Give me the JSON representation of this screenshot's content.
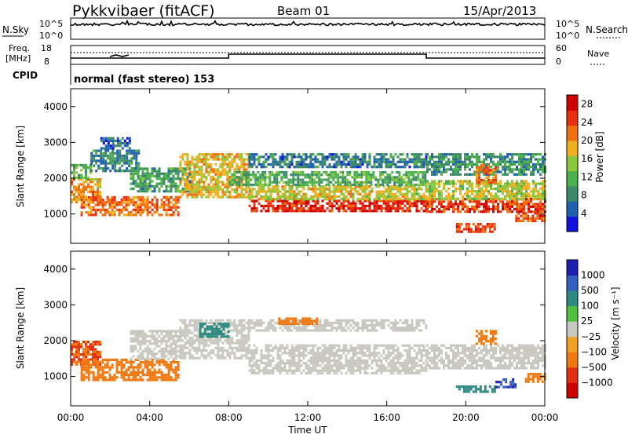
{
  "header": {
    "site": "Pykkvibaer (fitACF)",
    "beam": "Beam 01",
    "date": "15/Apr/2013"
  },
  "noise_panel": {
    "left_label": "N.Sky",
    "left_ticks": [
      "10^5",
      "10^0"
    ],
    "right_label": "N.Search",
    "right_ticks": [
      "10^5",
      "10^0"
    ]
  },
  "freq_panel": {
    "left_label_1": "Freq.",
    "left_label_2": "[MHz]",
    "left_ticks": [
      "18",
      "8"
    ],
    "right_label": "Nave",
    "right_ticks": [
      "60",
      "0"
    ]
  },
  "cpid_panel": {
    "label": "CPID",
    "text": "normal (fast stereo) 153"
  },
  "x_axis": {
    "title": "Time UT",
    "ticks": [
      "00:00",
      "04:00",
      "08:00",
      "12:00",
      "16:00",
      "20:00",
      "00:00"
    ]
  },
  "chart_data": [
    {
      "type": "heatmap",
      "title": "Power",
      "ylabel": "Slant Range [km]",
      "xlabel": "Time UT",
      "xlim": [
        0,
        24
      ],
      "ylim": [
        180,
        4500
      ],
      "y_ticks": [
        "1000",
        "2000",
        "3000",
        "4000"
      ],
      "y_tick_values": [
        1000,
        2000,
        3000,
        4000
      ],
      "colorbar": {
        "label": "Power [dB]",
        "ticks": [
          "4",
          "8",
          "12",
          "16",
          "20",
          "24",
          "28"
        ],
        "tick_values": [
          4,
          8,
          12,
          16,
          20,
          24,
          28
        ],
        "range": [
          0,
          30
        ],
        "colors": [
          "#1010e0",
          "#2060b0",
          "#3c8a6a",
          "#4cb04c",
          "#8cc83c",
          "#f0b020",
          "#f07010",
          "#e83010",
          "#d00000"
        ]
      },
      "bands": [
        {
          "t0": 0.0,
          "t1": 1.5,
          "r0": 1300,
          "r1": 2000,
          "level": 20
        },
        {
          "t0": 0.0,
          "t1": 1.0,
          "r0": 2000,
          "r1": 2400,
          "level": 12
        },
        {
          "t0": 1.0,
          "t1": 3.5,
          "r0": 2200,
          "r1": 2800,
          "level": 8
        },
        {
          "t0": 1.5,
          "t1": 3.0,
          "r0": 2800,
          "r1": 3150,
          "level": 6
        },
        {
          "t0": 0.5,
          "t1": 5.5,
          "r0": 1000,
          "r1": 1500,
          "level": 22
        },
        {
          "t0": 3.0,
          "t1": 6.0,
          "r0": 1600,
          "r1": 2300,
          "level": 10
        },
        {
          "t0": 5.5,
          "t1": 9.0,
          "r0": 1500,
          "r1": 2700,
          "level": 18
        },
        {
          "t0": 9.0,
          "t1": 18.0,
          "r0": 1100,
          "r1": 1400,
          "level": 26
        },
        {
          "t0": 9.0,
          "t1": 18.0,
          "r0": 1400,
          "r1": 1800,
          "level": 17
        },
        {
          "t0": 8.0,
          "t1": 18.0,
          "r0": 1800,
          "r1": 2200,
          "level": 11
        },
        {
          "t0": 9.0,
          "t1": 18.0,
          "r0": 2300,
          "r1": 2700,
          "level": 7
        },
        {
          "t0": 18.0,
          "t1": 24.0,
          "r0": 1050,
          "r1": 1450,
          "level": 25
        },
        {
          "t0": 18.0,
          "t1": 24.0,
          "r0": 1450,
          "r1": 1950,
          "level": 16
        },
        {
          "t0": 18.0,
          "t1": 24.0,
          "r0": 2100,
          "r1": 2700,
          "level": 9
        },
        {
          "t0": 19.5,
          "t1": 21.5,
          "r0": 500,
          "r1": 750,
          "level": 25
        },
        {
          "t0": 20.5,
          "t1": 21.5,
          "r0": 1900,
          "r1": 2400,
          "level": 22
        },
        {
          "t0": 22.5,
          "t1": 24.0,
          "r0": 800,
          "r1": 1050,
          "level": 23
        }
      ]
    },
    {
      "type": "heatmap",
      "title": "Velocity",
      "ylabel": "Slant Range [km]",
      "xlabel": "Time UT",
      "xlim": [
        0,
        24
      ],
      "ylim": [
        180,
        4500
      ],
      "y_ticks": [
        "1000",
        "2000",
        "3000",
        "4000"
      ],
      "y_tick_values": [
        1000,
        2000,
        3000,
        4000
      ],
      "colorbar": {
        "label": "Velocity [m s⁻¹]",
        "ticks": [
          "1000",
          "500",
          "100",
          "25",
          "−25",
          "−100",
          "−500",
          "−1000"
        ],
        "tick_values": [
          1000,
          500,
          100,
          25,
          -25,
          -100,
          -500,
          -1000
        ],
        "colors": [
          "#2020b0",
          "#3060c0",
          "#2e8a80",
          "#50c040",
          "#c8c8c0",
          "#f0a020",
          "#f07810",
          "#e03010",
          "#d00000"
        ]
      },
      "bands": [
        {
          "t0": 0.0,
          "t1": 1.5,
          "r0": 1300,
          "r1": 2000,
          "v": -300
        },
        {
          "t0": 0.5,
          "t1": 5.5,
          "r0": 900,
          "r1": 1500,
          "v": -200
        },
        {
          "t0": 3.0,
          "t1": 5.5,
          "r0": 1500,
          "r1": 2300,
          "v": 0
        },
        {
          "t0": 5.5,
          "t1": 9.0,
          "r0": 1500,
          "r1": 2600,
          "v": 0
        },
        {
          "t0": 6.5,
          "t1": 8.0,
          "r0": 2100,
          "r1": 2500,
          "v": 150
        },
        {
          "t0": 9.0,
          "t1": 18.0,
          "r0": 1100,
          "r1": 1900,
          "v": 0
        },
        {
          "t0": 9.0,
          "t1": 18.0,
          "r0": 2300,
          "r1": 2600,
          "v": 0
        },
        {
          "t0": 10.5,
          "t1": 12.5,
          "r0": 2450,
          "r1": 2650,
          "v": -200
        },
        {
          "t0": 18.0,
          "t1": 24.0,
          "r0": 1200,
          "r1": 1900,
          "v": 0
        },
        {
          "t0": 19.5,
          "t1": 21.5,
          "r0": 550,
          "r1": 750,
          "v": 200
        },
        {
          "t0": 21.5,
          "t1": 22.5,
          "r0": 700,
          "r1": 950,
          "v": 700
        },
        {
          "t0": 20.5,
          "t1": 21.5,
          "r0": 1900,
          "r1": 2300,
          "v": -200
        },
        {
          "t0": 23.0,
          "t1": 24.0,
          "r0": 850,
          "r1": 1100,
          "v": -200
        }
      ]
    }
  ]
}
